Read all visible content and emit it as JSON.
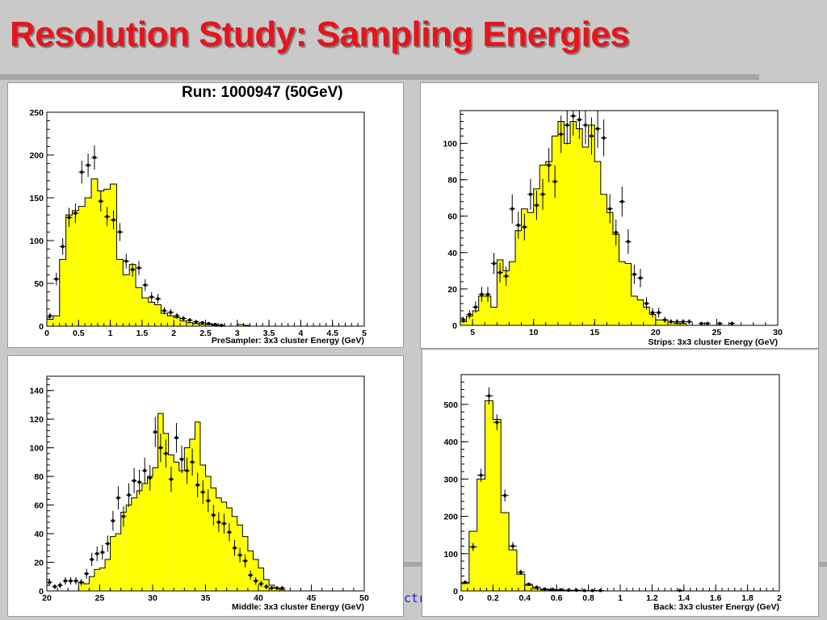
{
  "slide": {
    "title": "Resolution Study: Sampling Energies",
    "run_label": "Run: 1000947 (50GeV)",
    "footer_text": "ctr"
  },
  "colors": {
    "title": "#e8141a",
    "fill": "#ffff00",
    "markers": "#000000",
    "background": "#c9c9c9"
  },
  "chart_data": [
    {
      "id": "presampler",
      "type": "bar",
      "xlabel": "PreSampler: 3x3 cluster Energy (GeV)",
      "ylabel": "",
      "xlim": [
        0,
        5
      ],
      "ylim": [
        0,
        250
      ],
      "xticks": [
        0,
        0.5,
        1,
        1.5,
        2,
        2.5,
        3,
        3.5,
        4,
        4.5,
        5
      ],
      "xtick_labels": [
        "0",
        "0.5",
        "1",
        "1.5",
        "2",
        "2.5",
        "3",
        "3.5",
        "4",
        "4.5",
        "5"
      ],
      "yticks": [
        0,
        50,
        100,
        150,
        200,
        250
      ],
      "ytick_labels": [
        "0",
        "50",
        "100",
        "150",
        "200",
        "250"
      ],
      "bin_start": 0,
      "bin_width": 0.1,
      "histogram": [
        8,
        12,
        78,
        130,
        135,
        140,
        150,
        172,
        158,
        160,
        166,
        78,
        60,
        72,
        45,
        33,
        28,
        25,
        15,
        12,
        10,
        6,
        4,
        3,
        2,
        2,
        1,
        1,
        0,
        0,
        2,
        1,
        0
      ],
      "points": [
        [
          0.05,
          12
        ],
        [
          0.15,
          55
        ],
        [
          0.25,
          93
        ],
        [
          0.35,
          127
        ],
        [
          0.45,
          132
        ],
        [
          0.55,
          180
        ],
        [
          0.65,
          188
        ],
        [
          0.75,
          197
        ],
        [
          0.85,
          146
        ],
        [
          0.95,
          128
        ],
        [
          1.05,
          124
        ],
        [
          1.15,
          110
        ],
        [
          1.25,
          76
        ],
        [
          1.35,
          66
        ],
        [
          1.45,
          68
        ],
        [
          1.55,
          48
        ],
        [
          1.65,
          34
        ],
        [
          1.75,
          32
        ],
        [
          1.85,
          18
        ],
        [
          1.95,
          16
        ],
        [
          2.05,
          12
        ],
        [
          2.15,
          9
        ],
        [
          2.25,
          7
        ],
        [
          2.35,
          5
        ],
        [
          2.45,
          4
        ],
        [
          2.55,
          3
        ],
        [
          2.65,
          2
        ],
        [
          2.75,
          1
        ]
      ]
    },
    {
      "id": "strips",
      "type": "bar",
      "xlabel": "Strips: 3x3 cluster Energy (GeV)",
      "ylabel": "",
      "xlim": [
        4,
        30
      ],
      "ylim": [
        0,
        118
      ],
      "xticks": [
        5,
        10,
        15,
        20,
        25,
        30
      ],
      "xtick_labels": [
        "5",
        "10",
        "15",
        "20",
        "25",
        "30"
      ],
      "yticks": [
        0,
        20,
        40,
        60,
        80,
        100
      ],
      "ytick_labels": [
        "0",
        "20",
        "40",
        "60",
        "80",
        "100"
      ],
      "bin_start": 4.0,
      "bin_width": 0.5,
      "histogram": [
        2,
        5,
        8,
        16,
        16,
        10,
        36,
        30,
        35,
        52,
        64,
        62,
        75,
        88,
        90,
        104,
        112,
        100,
        112,
        108,
        98,
        110,
        90,
        72,
        62,
        50,
        35,
        34,
        16,
        14,
        10,
        6,
        3,
        3,
        2,
        1,
        1,
        0,
        0,
        0,
        0,
        0,
        0,
        0
      ],
      "points": [
        [
          4.25,
          3
        ],
        [
          4.75,
          6
        ],
        [
          5.25,
          10
        ],
        [
          5.75,
          17
        ],
        [
          6.25,
          17
        ],
        [
          6.75,
          34
        ],
        [
          7.25,
          29
        ],
        [
          7.75,
          27
        ],
        [
          8.25,
          64
        ],
        [
          8.75,
          55
        ],
        [
          9.25,
          54
        ],
        [
          9.75,
          72
        ],
        [
          10.25,
          66
        ],
        [
          10.75,
          72
        ],
        [
          11.25,
          88
        ],
        [
          11.75,
          79
        ],
        [
          12.25,
          105
        ],
        [
          12.75,
          110
        ],
        [
          13.25,
          115
        ],
        [
          13.75,
          113
        ],
        [
          14.25,
          110
        ],
        [
          14.75,
          104
        ],
        [
          15.25,
          108
        ],
        [
          15.75,
          103
        ],
        [
          16.25,
          64
        ],
        [
          16.75,
          51
        ],
        [
          17.25,
          68
        ],
        [
          17.75,
          46
        ],
        [
          18.25,
          28
        ],
        [
          18.75,
          26
        ],
        [
          19.25,
          12
        ],
        [
          19.75,
          7
        ],
        [
          20.25,
          7
        ],
        [
          20.75,
          3
        ],
        [
          21.25,
          2
        ],
        [
          21.75,
          2
        ],
        [
          22.25,
          2
        ],
        [
          22.75,
          2
        ],
        [
          23.75,
          1
        ],
        [
          24.25,
          1
        ],
        [
          25.25,
          1
        ],
        [
          26.25,
          1
        ]
      ]
    },
    {
      "id": "middle",
      "type": "bar",
      "xlabel": "Middle: 3x3 cluster Energy (GeV)",
      "ylabel": "",
      "xlim": [
        20,
        50
      ],
      "ylim": [
        0,
        150
      ],
      "xticks": [
        20,
        25,
        30,
        35,
        40,
        45,
        50
      ],
      "xtick_labels": [
        "20",
        "25",
        "30",
        "35",
        "40",
        "45",
        "50"
      ],
      "yticks": [
        0,
        20,
        40,
        60,
        80,
        100,
        120,
        140
      ],
      "ytick_labels": [
        "0",
        "20",
        "40",
        "60",
        "80",
        "100",
        "120",
        "140"
      ],
      "bin_start": 20.0,
      "bin_width": 0.5,
      "histogram": [
        0,
        0,
        0,
        0,
        0,
        0,
        6,
        5,
        10,
        15,
        16,
        22,
        38,
        40,
        55,
        60,
        65,
        70,
        75,
        80,
        86,
        124,
        110,
        95,
        90,
        84,
        100,
        106,
        118,
        88,
        80,
        72,
        65,
        62,
        58,
        52,
        46,
        38,
        28,
        22,
        16,
        8,
        4,
        2,
        1,
        0,
        0,
        0
      ],
      "points": [
        [
          20.25,
          6
        ],
        [
          20.75,
          3
        ],
        [
          21.25,
          4
        ],
        [
          21.75,
          7
        ],
        [
          22.25,
          7
        ],
        [
          22.75,
          7
        ],
        [
          23.25,
          6
        ],
        [
          23.75,
          12
        ],
        [
          24.25,
          22
        ],
        [
          24.75,
          26
        ],
        [
          25.25,
          27
        ],
        [
          25.75,
          33
        ],
        [
          26.25,
          49
        ],
        [
          26.75,
          65
        ],
        [
          27.25,
          52
        ],
        [
          27.75,
          67
        ],
        [
          28.25,
          77
        ],
        [
          28.75,
          76
        ],
        [
          29.25,
          84
        ],
        [
          29.75,
          79
        ],
        [
          30.25,
          111
        ],
        [
          30.75,
          100
        ],
        [
          31.25,
          96
        ],
        [
          31.75,
          78
        ],
        [
          32.25,
          107
        ],
        [
          32.75,
          92
        ],
        [
          33.25,
          84
        ],
        [
          33.75,
          90
        ],
        [
          34.25,
          74
        ],
        [
          34.75,
          69
        ],
        [
          35.25,
          63
        ],
        [
          35.75,
          53
        ],
        [
          36.25,
          48
        ],
        [
          36.75,
          47
        ],
        [
          37.25,
          41
        ],
        [
          37.75,
          30
        ],
        [
          38.25,
          25
        ],
        [
          38.75,
          21
        ],
        [
          39.25,
          11
        ],
        [
          39.75,
          7
        ],
        [
          40.25,
          5
        ],
        [
          40.75,
          3
        ],
        [
          41.25,
          2
        ],
        [
          41.75,
          2
        ],
        [
          42.25,
          2
        ]
      ]
    },
    {
      "id": "back",
      "type": "bar",
      "xlabel": "Back: 3x3 cluster Energy (GeV)",
      "ylabel": "",
      "xlim": [
        0,
        2
      ],
      "ylim": [
        0,
        580
      ],
      "xticks": [
        0,
        0.2,
        0.4,
        0.6,
        0.8,
        1,
        1.2,
        1.4,
        1.6,
        1.8,
        2
      ],
      "xtick_labels": [
        "0",
        "0.2",
        "0.4",
        "0.6",
        "0.8",
        "1",
        "1.2",
        "1.4",
        "1.6",
        "1.8",
        "2"
      ],
      "yticks": [
        0,
        100,
        200,
        300,
        400,
        500
      ],
      "ytick_labels": [
        "0",
        "100",
        "200",
        "300",
        "400",
        "500"
      ],
      "bin_start": 0,
      "bin_width": 0.05,
      "histogram": [
        20,
        160,
        300,
        510,
        460,
        210,
        110,
        45,
        15,
        6,
        3,
        2,
        2,
        1,
        1,
        1,
        1,
        0,
        0,
        0,
        0,
        0,
        0,
        0,
        0,
        0,
        0,
        0,
        0,
        0,
        0,
        0,
        0,
        0,
        0,
        0,
        0,
        0,
        0,
        0
      ],
      "points": [
        [
          0.025,
          23
        ],
        [
          0.075,
          118
        ],
        [
          0.125,
          310
        ],
        [
          0.175,
          523
        ],
        [
          0.225,
          452
        ],
        [
          0.275,
          256
        ],
        [
          0.325,
          120
        ],
        [
          0.375,
          50
        ],
        [
          0.425,
          18
        ],
        [
          0.475,
          10
        ],
        [
          0.525,
          5
        ],
        [
          0.575,
          4
        ],
        [
          0.625,
          3
        ],
        [
          0.675,
          2
        ],
        [
          0.725,
          2
        ],
        [
          0.775,
          1
        ],
        [
          0.825,
          1
        ],
        [
          0.875,
          1
        ],
        [
          1.375,
          1
        ]
      ]
    }
  ]
}
